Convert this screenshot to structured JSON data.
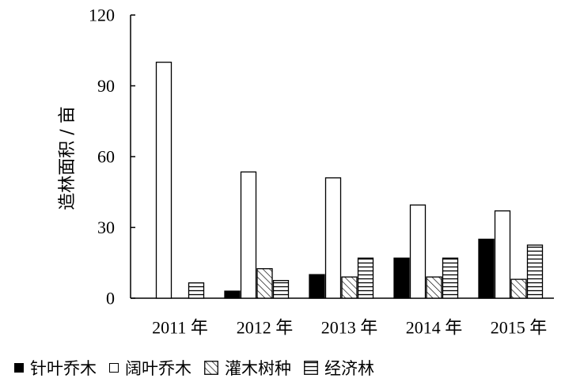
{
  "chart_data": {
    "type": "bar",
    "xlabel": "",
    "ylabel": "造林面积 / 亩",
    "ylim": [
      0,
      120
    ],
    "yticks": [
      "0",
      "30",
      "60",
      "90",
      "120"
    ],
    "categories": [
      "2011 年",
      "2012 年",
      "2013 年",
      "2014 年",
      "2015 年"
    ],
    "series": [
      {
        "name": "针叶乔木",
        "pattern": "solid",
        "color": "#000000",
        "values": [
          0,
          3,
          10,
          17,
          25
        ]
      },
      {
        "name": "阔叶乔木",
        "pattern": "empty",
        "color": "#ffffff",
        "values": [
          100,
          53.5,
          51,
          39.5,
          37
        ]
      },
      {
        "name": "灌木树种",
        "pattern": "diagonal",
        "color": "#ffffff",
        "values": [
          0,
          12.5,
          9,
          9,
          8
        ]
      },
      {
        "name": "经济林",
        "pattern": "horizontal",
        "color": "#ffffff",
        "values": [
          6.5,
          7.5,
          17,
          17,
          22.5
        ]
      }
    ],
    "legend_position": "bottom",
    "grid": false
  }
}
